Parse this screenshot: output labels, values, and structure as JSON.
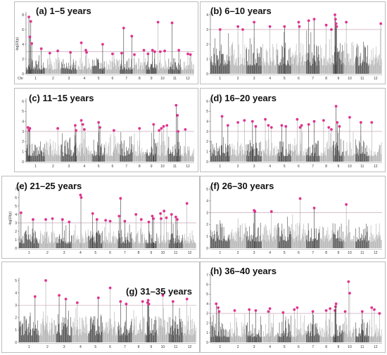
{
  "figure": {
    "colors": {
      "dark": "#3a3a3a",
      "light": "#a9a9a9",
      "highlight": "#e0338f",
      "threshold": "#c8a9b8"
    }
  },
  "chart_data": [
    {
      "type": "scatter",
      "title": "(a) 1–5 years",
      "ylabel": "-log10(p)",
      "ylim": [
        0,
        8
      ],
      "yticks": [
        0,
        2,
        4,
        6,
        8
      ],
      "xlabel": "Chr",
      "categories": [
        "1",
        "2",
        "3",
        "4",
        "5",
        "6",
        "7",
        "8",
        "9",
        "10",
        "11",
        "12"
      ],
      "threshold": 3,
      "highlights": [
        {
          "chr": 1,
          "pos": 0.15,
          "y": 7.7
        },
        {
          "chr": 1,
          "pos": 0.25,
          "y": 7.1
        },
        {
          "chr": 1,
          "pos": 0.2,
          "y": 5.0
        },
        {
          "chr": 1,
          "pos": 0.3,
          "y": 4.1
        },
        {
          "chr": 1,
          "pos": 0.8,
          "y": 3.4
        },
        {
          "chr": 2,
          "pos": 0.3,
          "y": 2.8
        },
        {
          "chr": 2,
          "pos": 0.8,
          "y": 3.1
        },
        {
          "chr": 3,
          "pos": 0.6,
          "y": 2.9
        },
        {
          "chr": 4,
          "pos": 0.3,
          "y": 4.2
        },
        {
          "chr": 4,
          "pos": 0.6,
          "y": 3.2
        },
        {
          "chr": 4,
          "pos": 0.65,
          "y": 2.9
        },
        {
          "chr": 5,
          "pos": 0.8,
          "y": 4.0
        },
        {
          "chr": 6,
          "pos": 0.5,
          "y": 2.7
        },
        {
          "chr": 7,
          "pos": 0.3,
          "y": 6.2
        },
        {
          "chr": 7,
          "pos": 0.15,
          "y": 2.8
        },
        {
          "chr": 7,
          "pos": 0.9,
          "y": 5.1
        },
        {
          "chr": 8,
          "pos": 0.1,
          "y": 2.6
        },
        {
          "chr": 8,
          "pos": 0.85,
          "y": 3.2
        },
        {
          "chr": 9,
          "pos": 0.2,
          "y": 2.7
        },
        {
          "chr": 9,
          "pos": 0.6,
          "y": 3.2
        },
        {
          "chr": 9,
          "pos": 0.8,
          "y": 3.0
        },
        {
          "chr": 10,
          "pos": 0.1,
          "y": 7.0
        },
        {
          "chr": 10,
          "pos": 0.3,
          "y": 3.0
        },
        {
          "chr": 10,
          "pos": 0.7,
          "y": 3.1
        },
        {
          "chr": 11,
          "pos": 0.3,
          "y": 6.9
        },
        {
          "chr": 11,
          "pos": 0.8,
          "y": 3.2
        },
        {
          "chr": 12,
          "pos": 0.5,
          "y": 2.7
        },
        {
          "chr": 12,
          "pos": 0.7,
          "y": 2.6
        }
      ]
    },
    {
      "type": "scatter",
      "title": "(b) 6–10 years",
      "ylabel": "",
      "ylim": [
        0,
        4
      ],
      "yticks": [
        0,
        1,
        2,
        3,
        4
      ],
      "xlabel": "",
      "categories": [
        "1",
        "2",
        "3",
        "4",
        "5",
        "6",
        "7",
        "8",
        "9",
        "10",
        "11",
        "12"
      ],
      "threshold": 3,
      "highlights": [
        {
          "chr": 1,
          "pos": 0.5,
          "y": 3.0
        },
        {
          "chr": 2,
          "pos": 0.5,
          "y": 3.2
        },
        {
          "chr": 2,
          "pos": 0.8,
          "y": 3.0
        },
        {
          "chr": 3,
          "pos": 0.5,
          "y": 3.5
        },
        {
          "chr": 4,
          "pos": 0.5,
          "y": 3.2
        },
        {
          "chr": 5,
          "pos": 0.5,
          "y": 3.2
        },
        {
          "chr": 6,
          "pos": 0.5,
          "y": 3.5
        },
        {
          "chr": 6,
          "pos": 0.55,
          "y": 3.2
        },
        {
          "chr": 7,
          "pos": 0.2,
          "y": 3.6
        },
        {
          "chr": 7,
          "pos": 0.6,
          "y": 3.7
        },
        {
          "chr": 8,
          "pos": 0.5,
          "y": 3.3
        },
        {
          "chr": 8,
          "pos": 0.9,
          "y": 3.0
        },
        {
          "chr": 9,
          "pos": 0.2,
          "y": 4.0
        },
        {
          "chr": 9,
          "pos": 0.25,
          "y": 3.7
        },
        {
          "chr": 9,
          "pos": 0.3,
          "y": 3.4
        },
        {
          "chr": 9,
          "pos": 0.35,
          "y": 3.2
        },
        {
          "chr": 10,
          "pos": 0.2,
          "y": 3.5
        },
        {
          "chr": 12,
          "pos": 0.9,
          "y": 3.4
        }
      ]
    },
    {
      "type": "scatter",
      "title": "(c) 11–15 years",
      "ylabel": "",
      "ylim": [
        0,
        6
      ],
      "yticks": [
        0,
        1,
        2,
        3,
        4,
        5,
        6
      ],
      "xlabel": "",
      "categories": [
        "1",
        "2",
        "3",
        "4",
        "5",
        "6",
        "7",
        "8",
        "9",
        "10",
        "11",
        "12"
      ],
      "threshold": 3,
      "highlights": [
        {
          "chr": 1,
          "pos": 0.1,
          "y": 3.4
        },
        {
          "chr": 1,
          "pos": 0.15,
          "y": 3.1
        },
        {
          "chr": 1,
          "pos": 0.2,
          "y": 3.3
        },
        {
          "chr": 2,
          "pos": 0.8,
          "y": 3.3
        },
        {
          "chr": 3,
          "pos": 0.9,
          "y": 3.6
        },
        {
          "chr": 3,
          "pos": 0.95,
          "y": 3.1
        },
        {
          "chr": 4,
          "pos": 0.3,
          "y": 4.1
        },
        {
          "chr": 4,
          "pos": 0.4,
          "y": 3.7
        },
        {
          "chr": 4,
          "pos": 0.5,
          "y": 3.2
        },
        {
          "chr": 5,
          "pos": 0.5,
          "y": 3.9
        },
        {
          "chr": 5,
          "pos": 0.6,
          "y": 3.4
        },
        {
          "chr": 6,
          "pos": 0.6,
          "y": 3.1
        },
        {
          "chr": 8,
          "pos": 0.5,
          "y": 3.3
        },
        {
          "chr": 9,
          "pos": 0.7,
          "y": 3.7
        },
        {
          "chr": 10,
          "pos": 0.2,
          "y": 3.1
        },
        {
          "chr": 10,
          "pos": 0.4,
          "y": 3.3
        },
        {
          "chr": 10,
          "pos": 0.6,
          "y": 3.5
        },
        {
          "chr": 10,
          "pos": 0.9,
          "y": 3.6
        },
        {
          "chr": 11,
          "pos": 0.6,
          "y": 5.6
        },
        {
          "chr": 11,
          "pos": 0.7,
          "y": 4.6
        },
        {
          "chr": 11,
          "pos": 0.75,
          "y": 3.0
        },
        {
          "chr": 12,
          "pos": 0.3,
          "y": 3.2
        }
      ]
    },
    {
      "type": "scatter",
      "title": "(d) 16–20 years",
      "ylabel": "",
      "ylim": [
        0,
        6
      ],
      "yticks": [
        0,
        1,
        2,
        3,
        4,
        5,
        6
      ],
      "xlabel": "",
      "categories": [
        "1",
        "2",
        "3",
        "4",
        "5",
        "6",
        "7",
        "8",
        "9",
        "10",
        "11",
        "12"
      ],
      "threshold": 3,
      "highlights": [
        {
          "chr": 1,
          "pos": 0.6,
          "y": 4.5
        },
        {
          "chr": 1,
          "pos": 0.9,
          "y": 3.6
        },
        {
          "chr": 2,
          "pos": 0.5,
          "y": 3.9
        },
        {
          "chr": 2,
          "pos": 0.9,
          "y": 4.1
        },
        {
          "chr": 3,
          "pos": 0.4,
          "y": 4.0
        },
        {
          "chr": 3,
          "pos": 0.6,
          "y": 3.5
        },
        {
          "chr": 4,
          "pos": 0.2,
          "y": 4.2
        },
        {
          "chr": 4,
          "pos": 0.4,
          "y": 3.6
        },
        {
          "chr": 4,
          "pos": 0.6,
          "y": 3.4
        },
        {
          "chr": 5,
          "pos": 0.3,
          "y": 3.6
        },
        {
          "chr": 5,
          "pos": 0.6,
          "y": 3.5
        },
        {
          "chr": 6,
          "pos": 0.4,
          "y": 4.2
        },
        {
          "chr": 6,
          "pos": 0.6,
          "y": 3.4
        },
        {
          "chr": 6,
          "pos": 0.7,
          "y": 3.6
        },
        {
          "chr": 7,
          "pos": 0.2,
          "y": 3.7
        },
        {
          "chr": 7,
          "pos": 0.6,
          "y": 4.0
        },
        {
          "chr": 8,
          "pos": 0.3,
          "y": 4.1
        },
        {
          "chr": 8,
          "pos": 0.7,
          "y": 3.4
        },
        {
          "chr": 8,
          "pos": 0.9,
          "y": 3.2
        },
        {
          "chr": 9,
          "pos": 0.3,
          "y": 5.5
        },
        {
          "chr": 9,
          "pos": 0.4,
          "y": 3.9
        },
        {
          "chr": 9,
          "pos": 0.6,
          "y": 3.5
        },
        {
          "chr": 10,
          "pos": 0.5,
          "y": 4.4
        },
        {
          "chr": 11,
          "pos": 0.4,
          "y": 3.9
        },
        {
          "chr": 12,
          "pos": 0.2,
          "y": 3.9
        }
      ]
    },
    {
      "type": "scatter",
      "title": "(e) 21–25 years",
      "ylabel": "-log10(p)",
      "ylim": [
        0,
        7
      ],
      "yticks": [
        0,
        1,
        2,
        3,
        4,
        5,
        6,
        7
      ],
      "xlabel": "",
      "categories": [
        "1",
        "2",
        "3",
        "4",
        "5",
        "6",
        "7",
        "8",
        "9",
        "10",
        "11",
        "12"
      ],
      "threshold": 3,
      "highlights": [
        {
          "chr": 1,
          "pos": 0.1,
          "y": 4.2
        },
        {
          "chr": 1,
          "pos": 0.7,
          "y": 3.4
        },
        {
          "chr": 2,
          "pos": 0.4,
          "y": 3.4
        },
        {
          "chr": 2,
          "pos": 0.8,
          "y": 3.5
        },
        {
          "chr": 3,
          "pos": 0.4,
          "y": 3.4
        },
        {
          "chr": 3,
          "pos": 0.8,
          "y": 3.1
        },
        {
          "chr": 4,
          "pos": 0.5,
          "y": 6.3
        },
        {
          "chr": 4,
          "pos": 0.55,
          "y": 6.0
        },
        {
          "chr": 5,
          "pos": 0.3,
          "y": 4.1
        },
        {
          "chr": 5,
          "pos": 0.6,
          "y": 3.4
        },
        {
          "chr": 6,
          "pos": 0.2,
          "y": 3.3
        },
        {
          "chr": 6,
          "pos": 0.5,
          "y": 3.2
        },
        {
          "chr": 7,
          "pos": 0.1,
          "y": 3.8
        },
        {
          "chr": 7,
          "pos": 0.2,
          "y": 5.9
        },
        {
          "chr": 7,
          "pos": 0.5,
          "y": 3.2
        },
        {
          "chr": 8,
          "pos": 0.3,
          "y": 4.0
        },
        {
          "chr": 8,
          "pos": 0.7,
          "y": 3.4
        },
        {
          "chr": 9,
          "pos": 0.3,
          "y": 3.1
        },
        {
          "chr": 9,
          "pos": 0.6,
          "y": 3.8
        },
        {
          "chr": 9,
          "pos": 0.7,
          "y": 3.5
        },
        {
          "chr": 10,
          "pos": 0.3,
          "y": 4.1
        },
        {
          "chr": 10,
          "pos": 0.35,
          "y": 3.5
        },
        {
          "chr": 10,
          "pos": 0.6,
          "y": 4.4
        },
        {
          "chr": 10,
          "pos": 0.8,
          "y": 3.6
        },
        {
          "chr": 11,
          "pos": 0.2,
          "y": 4.0
        },
        {
          "chr": 11,
          "pos": 0.5,
          "y": 3.7
        },
        {
          "chr": 11,
          "pos": 0.6,
          "y": 3.4
        },
        {
          "chr": 12,
          "pos": 0.3,
          "y": 5.3
        }
      ]
    },
    {
      "type": "scatter",
      "title": "(f) 26–30 years",
      "ylabel": "",
      "ylim": [
        0,
        5
      ],
      "yticks": [
        0,
        1,
        2,
        3,
        4,
        5
      ],
      "xlabel": "",
      "categories": [
        "1",
        "2",
        "3",
        "4",
        "5",
        "6",
        "7",
        "8",
        "9",
        "10",
        "11",
        "12"
      ],
      "threshold": 3,
      "highlights": [
        {
          "chr": 3,
          "pos": 0.5,
          "y": 3.2
        },
        {
          "chr": 3,
          "pos": 0.55,
          "y": 3.1
        },
        {
          "chr": 4,
          "pos": 0.6,
          "y": 3.1
        },
        {
          "chr": 6,
          "pos": 0.6,
          "y": 4.2
        },
        {
          "chr": 7,
          "pos": 0.6,
          "y": 3.4
        },
        {
          "chr": 10,
          "pos": 0.2,
          "y": 3.7
        }
      ]
    },
    {
      "type": "scatter",
      "title": "(g) 31–35 years",
      "ylabel": "",
      "ylim": [
        0,
        5
      ],
      "yticks": [
        0,
        1,
        2,
        3,
        4,
        5
      ],
      "xlabel": "",
      "categories": [
        "1",
        "2",
        "3",
        "4",
        "5",
        "6",
        "7",
        "8",
        "9",
        "10",
        "11",
        "12"
      ],
      "threshold": 3,
      "highlights": [
        {
          "chr": 1,
          "pos": 0.8,
          "y": 3.7
        },
        {
          "chr": 2,
          "pos": 0.4,
          "y": 5.0
        },
        {
          "chr": 3,
          "pos": 0.2,
          "y": 3.8
        },
        {
          "chr": 3,
          "pos": 0.6,
          "y": 3.5
        },
        {
          "chr": 4,
          "pos": 0.3,
          "y": 3.2
        },
        {
          "chr": 5,
          "pos": 0.7,
          "y": 3.6
        },
        {
          "chr": 6,
          "pos": 0.5,
          "y": 4.4
        },
        {
          "chr": 7,
          "pos": 0.2,
          "y": 3.3
        },
        {
          "chr": 7,
          "pos": 0.6,
          "y": 3.1
        },
        {
          "chr": 8,
          "pos": 0.8,
          "y": 3.3
        },
        {
          "chr": 9,
          "pos": 0.2,
          "y": 3.2
        },
        {
          "chr": 9,
          "pos": 0.25,
          "y": 3.4
        },
        {
          "chr": 9,
          "pos": 0.3,
          "y": 3.1
        },
        {
          "chr": 10,
          "pos": 0.5,
          "y": 3.8
        },
        {
          "chr": 11,
          "pos": 0.3,
          "y": 3.3
        },
        {
          "chr": 12,
          "pos": 0.3,
          "y": 3.5
        }
      ]
    },
    {
      "type": "scatter",
      "title": "(h) 36–40 years",
      "ylabel": "",
      "ylim": [
        0,
        7
      ],
      "yticks": [
        0,
        1,
        2,
        3,
        4,
        5,
        6,
        7
      ],
      "xlabel": "",
      "categories": [
        "1",
        "2",
        "3",
        "4",
        "5",
        "6",
        "7",
        "8",
        "9",
        "10",
        "11",
        "12"
      ],
      "threshold": 3,
      "highlights": [
        {
          "chr": 1,
          "pos": 0.3,
          "y": 4.0
        },
        {
          "chr": 1,
          "pos": 0.4,
          "y": 3.6
        },
        {
          "chr": 1,
          "pos": 0.45,
          "y": 3.2
        },
        {
          "chr": 2,
          "pos": 0.3,
          "y": 3.3
        },
        {
          "chr": 3,
          "pos": 0.2,
          "y": 3.4
        },
        {
          "chr": 3,
          "pos": 0.6,
          "y": 3.3
        },
        {
          "chr": 4,
          "pos": 0.4,
          "y": 3.2
        },
        {
          "chr": 4,
          "pos": 0.5,
          "y": 3.5
        },
        {
          "chr": 5,
          "pos": 0.4,
          "y": 3.1
        },
        {
          "chr": 6,
          "pos": 0.2,
          "y": 3.4
        },
        {
          "chr": 6,
          "pos": 0.4,
          "y": 3.6
        },
        {
          "chr": 7,
          "pos": 0.5,
          "y": 3.2
        },
        {
          "chr": 8,
          "pos": 0.5,
          "y": 3.3
        },
        {
          "chr": 8,
          "pos": 0.8,
          "y": 3.5
        },
        {
          "chr": 9,
          "pos": 0.2,
          "y": 3.3
        },
        {
          "chr": 9,
          "pos": 0.25,
          "y": 3.7
        },
        {
          "chr": 9,
          "pos": 0.3,
          "y": 4.0
        },
        {
          "chr": 10,
          "pos": 0.1,
          "y": 3.2
        },
        {
          "chr": 10,
          "pos": 0.4,
          "y": 6.3
        },
        {
          "chr": 10,
          "pos": 0.5,
          "y": 5.1
        },
        {
          "chr": 11,
          "pos": 0.5,
          "y": 3.2
        },
        {
          "chr": 12,
          "pos": 0.2,
          "y": 3.6
        },
        {
          "chr": 12,
          "pos": 0.4,
          "y": 3.4
        },
        {
          "chr": 12,
          "pos": 0.8,
          "y": 3.0
        }
      ]
    }
  ]
}
